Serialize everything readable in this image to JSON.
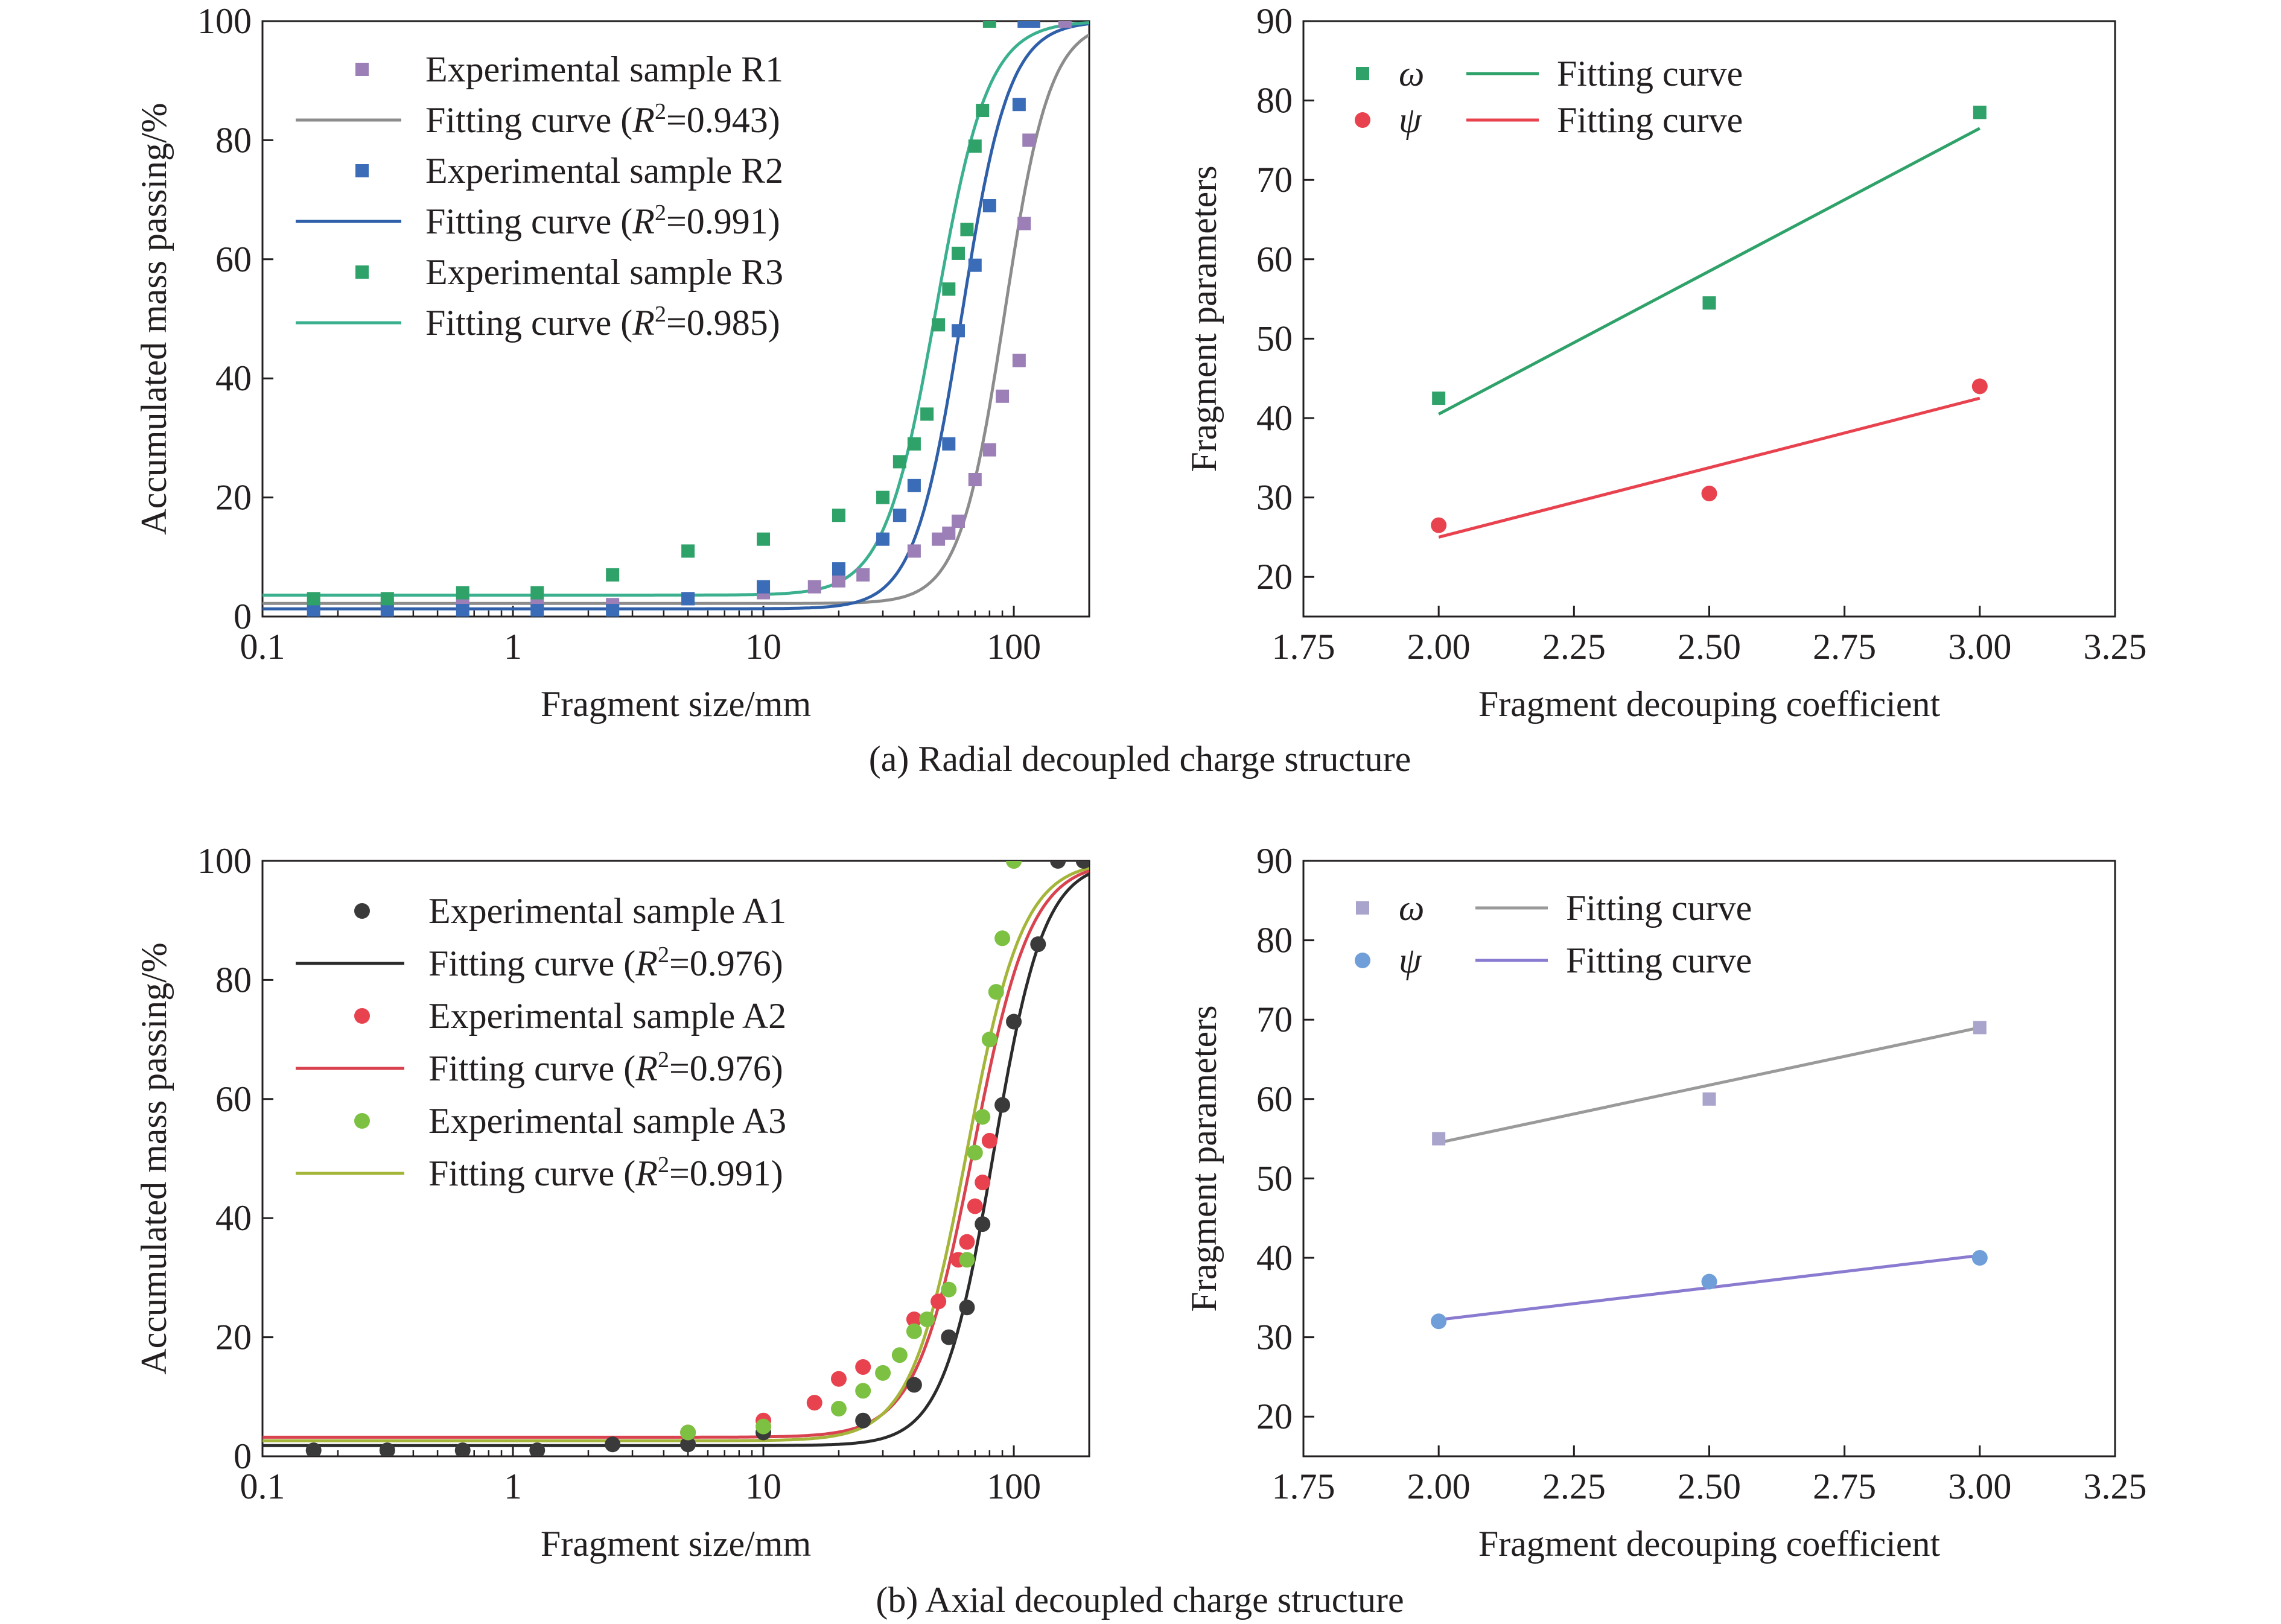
{
  "captions": {
    "a": "(a) Radial decoupled charge structure",
    "b": "(b) Axial decoupled charge structure"
  },
  "chart_data": [
    {
      "id": "a-left",
      "type": "scatter",
      "xscale": "log",
      "xlim": [
        0.1,
        200
      ],
      "ylim": [
        0,
        100
      ],
      "xticks": [
        "0.1",
        "1",
        "10",
        "100"
      ],
      "yticks": [
        "0",
        "20",
        "40",
        "60",
        "80",
        "100"
      ],
      "xlabel": "Fragment size/mm",
      "ylabel": "Accumulated mass passing/%",
      "legend_position": "top-left",
      "legend": [
        {
          "kind": "marker",
          "marker": "square",
          "color": "#9b7fb6",
          "label": "Experimental sample R1"
        },
        {
          "kind": "line",
          "color": "#8c8c8c",
          "label": "Fitting curve",
          "r2_prefix": "(",
          "r2_symbol": "R",
          "r2_exp": "2",
          "r2_value": "=0.943)"
        },
        {
          "kind": "marker",
          "marker": "square",
          "color": "#3a6cb8",
          "label": "Experimental sample R2"
        },
        {
          "kind": "line",
          "color": "#2e5fa8",
          "label": "Fitting curve",
          "r2_prefix": "(",
          "r2_symbol": "R",
          "r2_exp": "2",
          "r2_value": "=0.991)"
        },
        {
          "kind": "marker",
          "marker": "square",
          "color": "#2fa26a",
          "label": "Experimental sample R3"
        },
        {
          "kind": "line",
          "color": "#3bb08f",
          "label": "Fitting curve",
          "r2_prefix": "(",
          "r2_symbol": "R",
          "r2_exp": "2",
          "r2_value": "=0.985)"
        }
      ],
      "series": [
        {
          "name": "Experimental sample R1",
          "marker": "square",
          "color": "#9b7fb6",
          "x": [
            0.16,
            0.315,
            0.63,
            1.25,
            2.5,
            5,
            10,
            16,
            20,
            25,
            40,
            50,
            55,
            60,
            70,
            80,
            90,
            105,
            110,
            115,
            160
          ],
          "y": [
            2,
            2,
            2,
            2,
            2,
            3,
            4,
            5,
            6,
            7,
            11,
            13,
            14,
            16,
            23,
            28,
            37,
            43,
            66,
            80,
            100
          ]
        },
        {
          "name": "Experimental sample R2",
          "marker": "square",
          "color": "#3a6cb8",
          "x": [
            0.16,
            0.315,
            0.63,
            1.25,
            2.5,
            5,
            10,
            20,
            30,
            35,
            40,
            55,
            60,
            70,
            80,
            105,
            110,
            120
          ],
          "y": [
            1,
            1,
            1,
            1,
            1,
            3,
            5,
            8,
            13,
            17,
            22,
            29,
            48,
            59,
            69,
            86,
            100,
            100
          ]
        },
        {
          "name": "Experimental sample R3",
          "marker": "square",
          "color": "#2fa26a",
          "x": [
            0.16,
            0.315,
            0.63,
            1.25,
            2.5,
            5,
            10,
            20,
            30,
            35,
            40,
            45,
            50,
            55,
            60,
            65,
            70,
            75,
            80
          ],
          "y": [
            3,
            3,
            4,
            4,
            7,
            11,
            13,
            17,
            20,
            26,
            29,
            34,
            49,
            55,
            61,
            65,
            79,
            85,
            100
          ]
        }
      ],
      "curves": [
        {
          "name": "Fitting curve R1",
          "color": "#8c8c8c",
          "y0": 2.2,
          "x50": 92,
          "k": 4.8,
          "R2": "0.943"
        },
        {
          "name": "Fitting curve R2",
          "color": "#2e5fa8",
          "y0": 1.3,
          "x50": 62,
          "k": 4.6,
          "R2": "0.991"
        },
        {
          "name": "Fitting curve R3",
          "color": "#3bb08f",
          "y0": 3.6,
          "x50": 49,
          "k": 4.2,
          "R2": "0.985"
        }
      ]
    },
    {
      "id": "a-right",
      "type": "scatter",
      "xlim": [
        1.75,
        3.25
      ],
      "ylim": [
        15,
        90
      ],
      "xticks": [
        "1.75",
        "2.00",
        "2.25",
        "2.50",
        "2.75",
        "3.00",
        "3.25"
      ],
      "yticks": [
        "20",
        "30",
        "40",
        "50",
        "60",
        "70",
        "80",
        "90"
      ],
      "xlabel": "Fragment decouping coefficient",
      "ylabel": "Fragment parameters",
      "legend_position": "top-left",
      "legend": [
        {
          "kind": "marker",
          "marker": "square",
          "color": "#2fa26a",
          "label": "ω"
        },
        {
          "kind": "line",
          "color": "#2fa26a",
          "label": "Fitting curve"
        },
        {
          "kind": "marker",
          "marker": "circle",
          "color": "#e8424f",
          "label": "ψ"
        },
        {
          "kind": "line",
          "color": "#e8424f",
          "label": "Fitting curve"
        }
      ],
      "series": [
        {
          "name": "ω",
          "marker": "square",
          "color": "#2fa26a",
          "x": [
            2.0,
            2.5,
            3.0
          ],
          "y": [
            42.5,
            54.5,
            78.5
          ]
        },
        {
          "name": "ψ",
          "marker": "circle",
          "color": "#e8424f",
          "x": [
            2.0,
            2.5,
            3.0
          ],
          "y": [
            26.5,
            30.5,
            44
          ]
        }
      ],
      "lines": [
        {
          "color": "#2fa26a",
          "x": [
            2.0,
            3.0
          ],
          "y": [
            40.5,
            76.5
          ]
        },
        {
          "color": "#e8424f",
          "x": [
            2.0,
            3.0
          ],
          "y": [
            25,
            42.5
          ]
        }
      ]
    },
    {
      "id": "b-left",
      "type": "scatter",
      "xscale": "log",
      "xlim": [
        0.1,
        200
      ],
      "ylim": [
        0,
        100
      ],
      "xticks": [
        "0.1",
        "1",
        "10",
        "100"
      ],
      "yticks": [
        "0",
        "20",
        "40",
        "60",
        "80",
        "100"
      ],
      "xlabel": "Fragment size/mm",
      "ylabel": "Accumulated mass passing/%",
      "legend_position": "top-left",
      "legend": [
        {
          "kind": "marker",
          "marker": "circle",
          "color": "#3a3a3a",
          "label": "Experimental sample A1"
        },
        {
          "kind": "line",
          "color": "#2b2b2b",
          "label": "Fitting curve",
          "r2_prefix": "(",
          "r2_symbol": "R",
          "r2_exp": "2",
          "r2_value": "=0.976)"
        },
        {
          "kind": "marker",
          "marker": "circle",
          "color": "#e8424f",
          "label": "Experimental sample A2"
        },
        {
          "kind": "line",
          "color": "#d9424f",
          "label": "Fitting curve",
          "r2_prefix": "(",
          "r2_symbol": "R",
          "r2_exp": "2",
          "r2_value": "=0.976)"
        },
        {
          "kind": "marker",
          "marker": "circle",
          "color": "#7cc142",
          "label": "Experimental sample A3"
        },
        {
          "kind": "line",
          "color": "#a4b53a",
          "label": "Fitting curve",
          "r2_prefix": "(",
          "r2_symbol": "R",
          "r2_exp": "2",
          "r2_value": "=0.991)"
        }
      ],
      "series": [
        {
          "name": "Experimental sample A1",
          "marker": "circle",
          "color": "#3a3a3a",
          "x": [
            0.16,
            0.315,
            0.63,
            1.25,
            2.5,
            5,
            10,
            25,
            40,
            55,
            65,
            75,
            90,
            100,
            125,
            150,
            190
          ],
          "y": [
            1,
            1,
            1,
            1,
            2,
            2,
            4,
            6,
            12,
            20,
            25,
            39,
            59,
            73,
            86,
            100,
            100
          ]
        },
        {
          "name": "Experimental sample A2",
          "marker": "circle",
          "color": "#e8424f",
          "x": [
            5,
            10,
            16,
            20,
            25,
            40,
            50,
            60,
            65,
            70,
            75,
            80,
            100
          ],
          "y": [
            4,
            6,
            9,
            13,
            15,
            23,
            26,
            33,
            36,
            42,
            46,
            53,
            100
          ]
        },
        {
          "name": "Experimental sample A3",
          "marker": "circle",
          "color": "#7cc142",
          "x": [
            5,
            10,
            20,
            25,
            30,
            35,
            40,
            45,
            55,
            65,
            70,
            75,
            80,
            85,
            90,
            100
          ],
          "y": [
            4,
            5,
            8,
            11,
            14,
            17,
            21,
            23,
            28,
            33,
            51,
            57,
            70,
            78,
            87,
            100
          ]
        }
      ],
      "curves": [
        {
          "name": "Fitting curve A1",
          "color": "#2b2b2b",
          "y0": 1.8,
          "x50": 83,
          "k": 4.3,
          "R2": "0.976"
        },
        {
          "name": "Fitting curve A2",
          "color": "#d9424f",
          "y0": 3.2,
          "x50": 69,
          "k": 3.8,
          "R2": "0.976"
        },
        {
          "name": "Fitting curve A3",
          "color": "#a4b53a",
          "y0": 2.6,
          "x50": 65,
          "k": 3.9,
          "R2": "0.991"
        }
      ]
    },
    {
      "id": "b-right",
      "type": "scatter",
      "xlim": [
        1.75,
        3.25
      ],
      "ylim": [
        15,
        90
      ],
      "xticks": [
        "1.75",
        "2.00",
        "2.25",
        "2.50",
        "2.75",
        "3.00",
        "3.25"
      ],
      "yticks": [
        "20",
        "30",
        "40",
        "50",
        "60",
        "70",
        "80",
        "90"
      ],
      "xlabel": "Fragment decouping coefficient",
      "ylabel": "Fragment parameters",
      "legend_position": "top-left",
      "legend": [
        {
          "kind": "marker",
          "marker": "square",
          "color": "#a8a4cc",
          "label": "ω"
        },
        {
          "kind": "line",
          "color": "#9a9a9a",
          "label": "Fitting curve"
        },
        {
          "kind": "marker",
          "marker": "circle",
          "color": "#6f9ed9",
          "label": "ψ"
        },
        {
          "kind": "line",
          "color": "#8a7bd0",
          "label": "Fitting curve"
        }
      ],
      "series": [
        {
          "name": "ω",
          "marker": "square",
          "color": "#a8a4cc",
          "x": [
            2.0,
            2.5,
            3.0
          ],
          "y": [
            55,
            60,
            69
          ]
        },
        {
          "name": "ψ",
          "marker": "circle",
          "color": "#6f9ed9",
          "x": [
            2.0,
            2.5,
            3.0
          ],
          "y": [
            32,
            37,
            40
          ]
        }
      ],
      "lines": [
        {
          "color": "#9a9a9a",
          "x": [
            2.0,
            3.0
          ],
          "y": [
            54.5,
            69
          ]
        },
        {
          "color": "#8a7bd0",
          "x": [
            2.0,
            3.0
          ],
          "y": [
            32.2,
            40.3
          ]
        }
      ]
    }
  ]
}
